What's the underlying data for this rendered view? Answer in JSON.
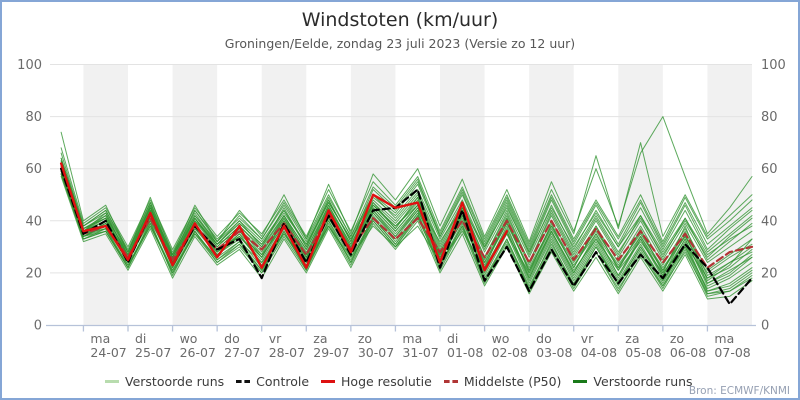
{
  "window": {
    "border_color": "#85a6d6",
    "background": "#ffffff"
  },
  "header": {
    "title": "Windstoten (km/uur)",
    "subtitle": "Groningen/Eelde, zondag 23 juli 2023 (Versie zo 12 uur)"
  },
  "source": "Bron: ECMWF/KNMI",
  "legend": [
    {
      "label": "Verstoorde runs",
      "color": "#b8dcae",
      "dash": false
    },
    {
      "label": "Controle",
      "color": "#111111",
      "dash": true
    },
    {
      "label": "Hoge resolutie",
      "color": "#dd1111",
      "dash": false
    },
    {
      "label": "Middelste (P50)",
      "color": "#b03535",
      "dash": true
    },
    {
      "label": "Verstoorde runs",
      "color": "#1a7a1a",
      "dash": false
    }
  ],
  "chart_data": {
    "type": "line",
    "title": "Windstoten (km/uur)",
    "subtitle": "Groningen/Eelde, zondag 23 juli 2023 (Versie zo 12 uur)",
    "ylabel": "",
    "ylim": [
      0,
      100
    ],
    "yticks": [
      0,
      20,
      40,
      60,
      80,
      100
    ],
    "grid": "horizontal",
    "band_color": "#f1f1f1",
    "grid_color": "#e3e3e3",
    "axis_color": "#b6c2d9",
    "tick_label_color": "#6b6b6b",
    "x_domain_hours": [
      6,
      384
    ],
    "x_start_hour": 12,
    "x_step_hours": 12,
    "x_note": "hours counted from 23-07 00:00; run starts 23-07 12:00, 12h resolution",
    "day_ticks": [
      {
        "dow": "ma",
        "date": "24-07",
        "hour": 24,
        "shaded": true
      },
      {
        "dow": "di",
        "date": "25-07",
        "hour": 48,
        "shaded": false
      },
      {
        "dow": "wo",
        "date": "26-07",
        "hour": 72,
        "shaded": true
      },
      {
        "dow": "do",
        "date": "27-07",
        "hour": 96,
        "shaded": false
      },
      {
        "dow": "vr",
        "date": "28-07",
        "hour": 120,
        "shaded": true
      },
      {
        "dow": "za",
        "date": "29-07",
        "hour": 144,
        "shaded": false
      },
      {
        "dow": "zo",
        "date": "30-07",
        "hour": 168,
        "shaded": true
      },
      {
        "dow": "ma",
        "date": "31-07",
        "hour": 192,
        "shaded": false
      },
      {
        "dow": "di",
        "date": "01-08",
        "hour": 216,
        "shaded": true
      },
      {
        "dow": "wo",
        "date": "02-08",
        "hour": 240,
        "shaded": false
      },
      {
        "dow": "do",
        "date": "03-08",
        "hour": 264,
        "shaded": true
      },
      {
        "dow": "vr",
        "date": "04-08",
        "hour": 288,
        "shaded": false
      },
      {
        "dow": "za",
        "date": "05-08",
        "hour": 312,
        "shaded": true
      },
      {
        "dow": "zo",
        "date": "06-08",
        "hour": 336,
        "shaded": false
      },
      {
        "dow": "ma",
        "date": "07-08",
        "hour": 360,
        "shaded": true
      }
    ],
    "series": [
      {
        "name": "Controle",
        "color": "#000000",
        "dash": [
          7,
          4
        ],
        "width": 2.2,
        "z": 2,
        "values": [
          60,
          35,
          40,
          24,
          43,
          23,
          38,
          29,
          33,
          18,
          39,
          24,
          42,
          27,
          44,
          45,
          52,
          22,
          44,
          17,
          30,
          13,
          29,
          15,
          28,
          16,
          27,
          18,
          31,
          22,
          8,
          18
        ]
      },
      {
        "name": "Hoge resolutie",
        "color": "#e01010",
        "dash": null,
        "width": 2.4,
        "z": 3,
        "values": [
          62,
          36,
          38,
          25,
          43,
          23,
          39,
          26,
          38,
          22,
          38,
          22,
          44,
          28,
          50,
          45,
          47,
          24,
          47,
          21,
          36
        ]
      },
      {
        "name": "Middelste (P50)",
        "color": "#b03535",
        "dash": [
          7,
          4
        ],
        "width": 2.2,
        "z": 1,
        "values": [
          60,
          35,
          38,
          26,
          41,
          25,
          38,
          29,
          36,
          29,
          39,
          27,
          42,
          29,
          41,
          33,
          41,
          28,
          40,
          26,
          40,
          24,
          40,
          25,
          37,
          25,
          36,
          24,
          35,
          22,
          28,
          30
        ]
      }
    ],
    "ensemble": {
      "name": "Verstoorde runs",
      "color": "#2f9230",
      "opacity": 0.78,
      "width": 1,
      "members": [
        [
          62,
          36,
          41,
          25,
          44,
          23,
          40,
          31,
          36,
          26,
          41,
          26,
          45,
          29,
          46,
          38,
          47,
          25,
          44,
          21,
          38,
          18,
          36,
          20,
          35,
          19,
          34,
          19,
          35,
          16,
          21,
          26
        ],
        [
          58,
          33,
          36,
          23,
          38,
          21,
          35,
          26,
          32,
          24,
          35,
          24,
          38,
          26,
          38,
          30,
          38,
          24,
          36,
          22,
          35,
          20,
          36,
          21,
          33,
          21,
          32,
          20,
          31,
          18,
          24,
          28
        ],
        [
          64,
          38,
          43,
          28,
          46,
          27,
          42,
          32,
          40,
          32,
          44,
          30,
          47,
          33,
          46,
          38,
          46,
          32,
          45,
          30,
          45,
          28,
          45,
          30,
          43,
          30,
          42,
          28,
          41,
          27,
          33,
          38
        ],
        [
          60,
          34,
          37,
          22,
          40,
          19,
          36,
          24,
          30,
          20,
          36,
          21,
          40,
          24,
          42,
          32,
          43,
          22,
          38,
          17,
          32,
          14,
          30,
          15,
          28,
          14,
          27,
          15,
          28,
          12,
          14,
          20
        ],
        [
          61,
          35,
          39,
          26,
          42,
          24,
          38,
          28,
          35,
          27,
          38,
          26,
          41,
          28,
          43,
          34,
          44,
          27,
          42,
          24,
          39,
          22,
          38,
          24,
          36,
          23,
          35,
          22,
          34,
          20,
          26,
          31
        ],
        [
          59,
          34,
          38,
          24,
          41,
          22,
          37,
          27,
          33,
          22,
          37,
          23,
          40,
          26,
          41,
          31,
          42,
          25,
          40,
          20,
          36,
          17,
          34,
          18,
          32,
          17,
          31,
          17,
          30,
          14,
          18,
          24
        ],
        [
          63,
          37,
          42,
          27,
          45,
          26,
          41,
          30,
          38,
          30,
          42,
          29,
          46,
          31,
          48,
          40,
          50,
          30,
          46,
          26,
          42,
          24,
          42,
          26,
          40,
          26,
          40,
          25,
          39,
          24,
          30,
          36
        ],
        [
          60,
          35,
          38,
          25,
          41,
          23,
          38,
          28,
          34,
          25,
          39,
          25,
          42,
          28,
          44,
          35,
          45,
          26,
          41,
          22,
          37,
          19,
          36,
          20,
          34,
          19,
          33,
          19,
          33,
          16,
          20,
          27
        ],
        [
          62,
          36,
          40,
          26,
          43,
          25,
          40,
          29,
          37,
          28,
          41,
          28,
          44,
          30,
          46,
          37,
          48,
          28,
          44,
          25,
          41,
          23,
          40,
          25,
          38,
          24,
          38,
          23,
          37,
          21,
          27,
          33
        ],
        [
          57,
          32,
          35,
          21,
          37,
          18,
          34,
          23,
          29,
          18,
          33,
          20,
          37,
          22,
          39,
          29,
          40,
          20,
          35,
          15,
          30,
          12,
          28,
          13,
          26,
          12,
          26,
          13,
          27,
          10,
          11,
          17
        ],
        [
          61,
          36,
          40,
          27,
          44,
          26,
          41,
          31,
          39,
          31,
          43,
          31,
          47,
          33,
          49,
          42,
          52,
          33,
          48,
          29,
          46,
          27,
          46,
          29,
          44,
          30,
          45,
          29,
          44,
          28,
          35,
          42
        ],
        [
          59,
          33,
          37,
          23,
          39,
          21,
          36,
          25,
          31,
          21,
          35,
          22,
          38,
          25,
          40,
          30,
          41,
          23,
          38,
          18,
          33,
          15,
          31,
          16,
          30,
          16,
          30,
          16,
          31,
          13,
          16,
          22
        ],
        [
          66,
          38,
          44,
          29,
          47,
          28,
          44,
          33,
          41,
          33,
          46,
          32,
          49,
          34,
          50,
          43,
          54,
          34,
          50,
          31,
          48,
          29,
          49,
          32,
          47,
          33,
          48,
          31,
          47,
          31,
          38,
          45
        ],
        [
          60,
          34,
          38,
          24,
          42,
          22,
          38,
          27,
          34,
          24,
          38,
          24,
          41,
          27,
          43,
          33,
          44,
          25,
          40,
          21,
          36,
          18,
          35,
          19,
          33,
          18,
          33,
          18,
          33,
          15,
          19,
          26
        ],
        [
          62,
          37,
          41,
          26,
          44,
          25,
          41,
          30,
          38,
          29,
          42,
          29,
          45,
          31,
          47,
          39,
          49,
          29,
          45,
          26,
          43,
          24,
          43,
          27,
          41,
          27,
          42,
          26,
          41,
          25,
          32,
          39
        ],
        [
          58,
          33,
          36,
          22,
          39,
          20,
          35,
          24,
          31,
          20,
          34,
          21,
          38,
          23,
          40,
          30,
          42,
          21,
          37,
          16,
          31,
          13,
          29,
          14,
          28,
          13,
          28,
          14,
          29,
          11,
          13,
          19
        ],
        [
          68,
          39,
          45,
          30,
          48,
          29,
          45,
          34,
          43,
          35,
          48,
          34,
          52,
          36,
          55,
          46,
          57,
          36,
          53,
          33,
          50,
          31,
          52,
          35,
          65,
          37,
          70,
          34,
          50,
          34,
          42,
          50
        ],
        [
          61,
          35,
          39,
          25,
          42,
          24,
          39,
          28,
          36,
          26,
          40,
          27,
          43,
          29,
          45,
          36,
          46,
          27,
          43,
          23,
          39,
          21,
          38,
          22,
          37,
          22,
          36,
          21,
          36,
          19,
          24,
          30
        ],
        [
          60,
          36,
          42,
          27,
          45,
          26,
          42,
          31,
          39,
          31,
          44,
          31,
          48,
          32,
          52,
          44,
          55,
          35,
          52,
          32,
          49,
          30,
          50,
          33,
          48,
          34,
          50,
          32,
          49,
          33,
          40,
          48
        ],
        [
          74,
          40,
          46,
          28,
          49,
          27,
          46,
          32,
          44,
          34,
          50,
          33,
          54,
          35,
          58,
          48,
          60,
          38,
          56,
          34,
          52,
          32,
          55,
          36,
          60,
          38,
          66,
          80,
          57,
          35,
          45,
          57
        ],
        [
          61,
          34,
          39,
          24,
          42,
          23,
          39,
          27,
          35,
          23,
          38,
          25,
          43,
          27,
          45,
          36,
          46,
          24,
          42,
          19,
          35,
          16,
          33,
          17,
          31,
          16,
          30,
          17,
          32,
          13,
          15,
          21
        ],
        [
          63,
          37,
          41,
          28,
          45,
          27,
          43,
          31,
          40,
          30,
          45,
          30,
          48,
          32,
          50,
          41,
          51,
          31,
          47,
          28,
          44,
          26,
          44,
          28,
          42,
          28,
          41,
          27,
          40,
          26,
          34,
          41
        ],
        [
          59,
          35,
          37,
          25,
          40,
          24,
          37,
          29,
          34,
          26,
          40,
          26,
          42,
          29,
          44,
          34,
          45,
          28,
          43,
          24,
          40,
          21,
          37,
          23,
          35,
          22,
          34,
          21,
          34,
          18,
          22,
          29
        ],
        [
          62,
          36,
          43,
          26,
          46,
          24,
          41,
          29,
          37,
          27,
          42,
          27,
          46,
          30,
          47,
          37,
          49,
          26,
          45,
          22,
          41,
          20,
          39,
          22,
          38,
          21,
          37,
          20,
          38,
          17,
          23,
          33
        ],
        [
          58,
          34,
          36,
          22,
          38,
          20,
          36,
          25,
          32,
          21,
          36,
          22,
          39,
          24,
          41,
          31,
          43,
          23,
          39,
          17,
          33,
          14,
          32,
          15,
          30,
          15,
          29,
          15,
          30,
          12,
          13,
          18
        ],
        [
          64,
          38,
          44,
          28,
          47,
          26,
          44,
          32,
          42,
          33,
          47,
          33,
          50,
          34,
          53,
          45,
          56,
          34,
          51,
          30,
          47,
          28,
          48,
          31,
          46,
          31,
          47,
          30,
          46,
          29,
          37,
          44
        ]
      ]
    },
    "legend_position": "bottom",
    "legend_entries": [
      "Verstoorde runs",
      "Controle",
      "Hoge resolutie",
      "Middelste (P50)",
      "Verstoorde runs"
    ]
  }
}
